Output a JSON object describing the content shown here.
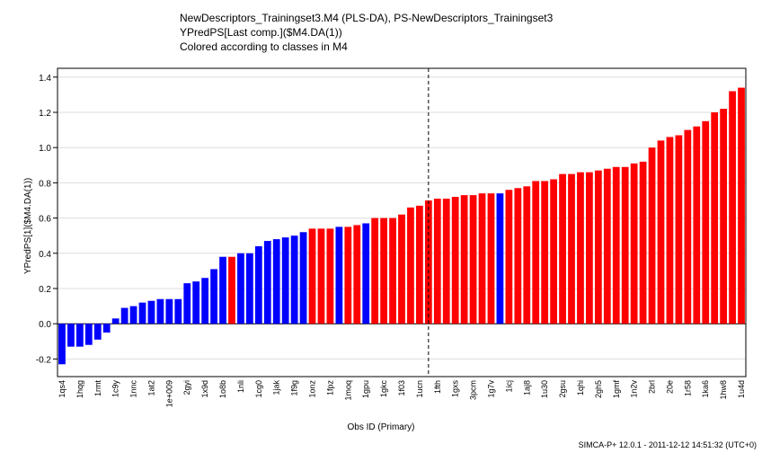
{
  "header": {
    "title_line1": "NewDescriptors_Trainingset3.M4 (PLS-DA), PS-NewDescriptors_Trainingset3",
    "title_line2": "YPredPS[Last comp.]($M4.DA(1))",
    "title_line3": "Colored according to classes in M4"
  },
  "footer": {
    "text": "SIMCA-P+ 12.0.1 - 2011-12-12 14:51:32 (UTC+0)"
  },
  "colors": {
    "class1": "#0000ff",
    "class2": "#ff0000",
    "grid": "#dddddd",
    "axis": "#000000"
  },
  "chart_data": {
    "type": "bar",
    "xlabel": "Obs ID (Primary)",
    "ylabel": "YPredPS[1]($M4.DA(1))",
    "ylim": [
      -0.3,
      1.45
    ],
    "yticks": [
      -0.2,
      0.0,
      0.2,
      0.4,
      0.6,
      0.8,
      1.0,
      1.2,
      1.4
    ],
    "ytick_labels": [
      "-0.2",
      "0.0",
      "0.2",
      "0.4",
      "0.6",
      "0.8",
      "1.0",
      "1.2",
      "1.4"
    ],
    "grid": "horizontal",
    "threshold_line_after_index": 41,
    "bars": [
      {
        "label": "1qs4",
        "value": -0.23,
        "class": 1
      },
      {
        "label": "",
        "value": -0.13,
        "class": 1
      },
      {
        "label": "1hqg",
        "value": -0.13,
        "class": 1
      },
      {
        "label": "",
        "value": -0.12,
        "class": 1
      },
      {
        "label": "1rmt",
        "value": -0.09,
        "class": 1
      },
      {
        "label": "",
        "value": -0.05,
        "class": 1
      },
      {
        "label": "1c9y",
        "value": 0.03,
        "class": 1
      },
      {
        "label": "",
        "value": 0.09,
        "class": 1
      },
      {
        "label": "1nnc",
        "value": 0.1,
        "class": 1
      },
      {
        "label": "",
        "value": 0.12,
        "class": 1
      },
      {
        "label": "1at2",
        "value": 0.13,
        "class": 1
      },
      {
        "label": "",
        "value": 0.14,
        "class": 1
      },
      {
        "label": "1e+009",
        "value": 0.14,
        "class": 1
      },
      {
        "label": "",
        "value": 0.14,
        "class": 1
      },
      {
        "label": "2gyi",
        "value": 0.23,
        "class": 1
      },
      {
        "label": "",
        "value": 0.24,
        "class": 1
      },
      {
        "label": "1x9d",
        "value": 0.26,
        "class": 1
      },
      {
        "label": "",
        "value": 0.31,
        "class": 1
      },
      {
        "label": "1o8b",
        "value": 0.38,
        "class": 1
      },
      {
        "label": "",
        "value": 0.38,
        "class": 2
      },
      {
        "label": "1nli",
        "value": 0.4,
        "class": 1
      },
      {
        "label": "",
        "value": 0.4,
        "class": 1
      },
      {
        "label": "1cg0",
        "value": 0.44,
        "class": 1
      },
      {
        "label": "",
        "value": 0.47,
        "class": 1
      },
      {
        "label": "1jak",
        "value": 0.48,
        "class": 1
      },
      {
        "label": "",
        "value": 0.49,
        "class": 1
      },
      {
        "label": "1f9g",
        "value": 0.5,
        "class": 1
      },
      {
        "label": "",
        "value": 0.52,
        "class": 1
      },
      {
        "label": "1onz",
        "value": 0.54,
        "class": 2
      },
      {
        "label": "",
        "value": 0.54,
        "class": 2
      },
      {
        "label": "1fpz",
        "value": 0.54,
        "class": 2
      },
      {
        "label": "",
        "value": 0.55,
        "class": 1
      },
      {
        "label": "1moq",
        "value": 0.55,
        "class": 2
      },
      {
        "label": "",
        "value": 0.56,
        "class": 2
      },
      {
        "label": "1gpu",
        "value": 0.57,
        "class": 1
      },
      {
        "label": "",
        "value": 0.6,
        "class": 2
      },
      {
        "label": "1gkc",
        "value": 0.6,
        "class": 2
      },
      {
        "label": "",
        "value": 0.6,
        "class": 2
      },
      {
        "label": "1f03",
        "value": 0.62,
        "class": 2
      },
      {
        "label": "",
        "value": 0.66,
        "class": 2
      },
      {
        "label": "1ucn",
        "value": 0.67,
        "class": 2
      },
      {
        "label": "",
        "value": 0.7,
        "class": 2
      },
      {
        "label": "1fth",
        "value": 0.71,
        "class": 2
      },
      {
        "label": "",
        "value": 0.71,
        "class": 2
      },
      {
        "label": "1gxs",
        "value": 0.72,
        "class": 2
      },
      {
        "label": "",
        "value": 0.73,
        "class": 2
      },
      {
        "label": "3pcm",
        "value": 0.73,
        "class": 2
      },
      {
        "label": "",
        "value": 0.74,
        "class": 2
      },
      {
        "label": "1g7v",
        "value": 0.74,
        "class": 2
      },
      {
        "label": "",
        "value": 0.74,
        "class": 1
      },
      {
        "label": "1icj",
        "value": 0.76,
        "class": 2
      },
      {
        "label": "",
        "value": 0.77,
        "class": 2
      },
      {
        "label": "1aj8",
        "value": 0.78,
        "class": 2
      },
      {
        "label": "",
        "value": 0.81,
        "class": 2
      },
      {
        "label": "1u30",
        "value": 0.81,
        "class": 2
      },
      {
        "label": "",
        "value": 0.82,
        "class": 2
      },
      {
        "label": "2gsu",
        "value": 0.85,
        "class": 2
      },
      {
        "label": "",
        "value": 0.85,
        "class": 2
      },
      {
        "label": "1qhi",
        "value": 0.86,
        "class": 2
      },
      {
        "label": "",
        "value": 0.86,
        "class": 2
      },
      {
        "label": "2gh5",
        "value": 0.87,
        "class": 2
      },
      {
        "label": "",
        "value": 0.88,
        "class": 2
      },
      {
        "label": "1gmf",
        "value": 0.89,
        "class": 2
      },
      {
        "label": "",
        "value": 0.89,
        "class": 2
      },
      {
        "label": "1n2v",
        "value": 0.91,
        "class": 2
      },
      {
        "label": "",
        "value": 0.92,
        "class": 2
      },
      {
        "label": "2brl",
        "value": 1.0,
        "class": 2
      },
      {
        "label": "",
        "value": 1.04,
        "class": 2
      },
      {
        "label": "20e",
        "value": 1.06,
        "class": 2
      },
      {
        "label": "",
        "value": 1.07,
        "class": 2
      },
      {
        "label": "1r58",
        "value": 1.1,
        "class": 2
      },
      {
        "label": "",
        "value": 1.12,
        "class": 2
      },
      {
        "label": "1ka6",
        "value": 1.15,
        "class": 2
      },
      {
        "label": "",
        "value": 1.2,
        "class": 2
      },
      {
        "label": "1hw8",
        "value": 1.22,
        "class": 2
      },
      {
        "label": "",
        "value": 1.32,
        "class": 2
      },
      {
        "label": "1u4d",
        "value": 1.34,
        "class": 2
      }
    ]
  }
}
